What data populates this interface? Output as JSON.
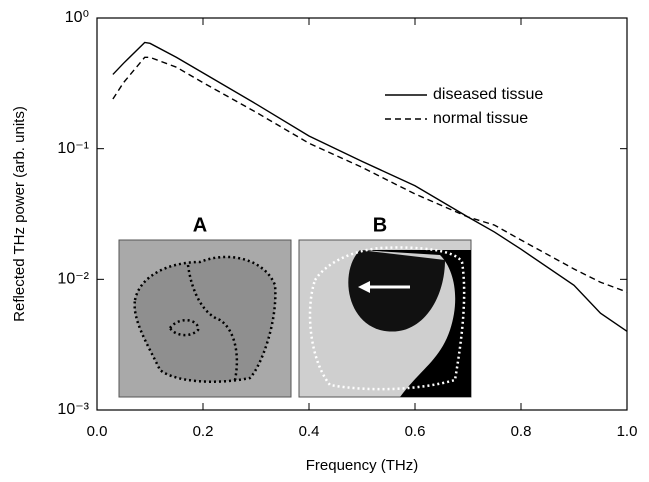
{
  "chart_data": {
    "type": "line",
    "x_label": "Frequency (THz)",
    "y_label": "Reflected THz power (arb. units)",
    "x": [
      0.03,
      0.05,
      0.09,
      0.1,
      0.15,
      0.2,
      0.3,
      0.4,
      0.5,
      0.6,
      0.7,
      0.75,
      0.8,
      0.9,
      0.95,
      1.0
    ],
    "series": [
      {
        "name": "diseased tissue",
        "color": "#000000",
        "line_style": "solid",
        "values": [
          0.37,
          0.45,
          0.65,
          0.64,
          0.5,
          0.38,
          0.22,
          0.125,
          0.08,
          0.052,
          0.03,
          0.023,
          0.017,
          0.009,
          0.0055,
          0.004
        ]
      },
      {
        "name": "normal tissue",
        "color": "#000000",
        "line_style": "dashed",
        "values": [
          0.24,
          0.32,
          0.5,
          0.5,
          0.42,
          0.32,
          0.19,
          0.11,
          0.072,
          0.045,
          0.03,
          0.026,
          0.02,
          0.012,
          0.0095,
          0.008
        ]
      }
    ],
    "xlim": [
      0,
      1
    ],
    "ylim": [
      0.001,
      1
    ],
    "log_y": true,
    "xticks": [
      {
        "value": 0,
        "label": "0.0"
      },
      0.2,
      0.4,
      0.6,
      0.8,
      {
        "value": 1,
        "label": "1.0"
      }
    ],
    "yticks": [
      {
        "value": 1,
        "label": "10⁰"
      },
      {
        "value": 0.1,
        "label": "10⁻¹"
      },
      {
        "value": 0.01,
        "label": "10⁻²"
      },
      {
        "value": 0.001,
        "label": "10⁻³"
      }
    ],
    "legend_position": "upper right",
    "insets": [
      {
        "label": "A"
      },
      {
        "label": "B"
      }
    ]
  }
}
